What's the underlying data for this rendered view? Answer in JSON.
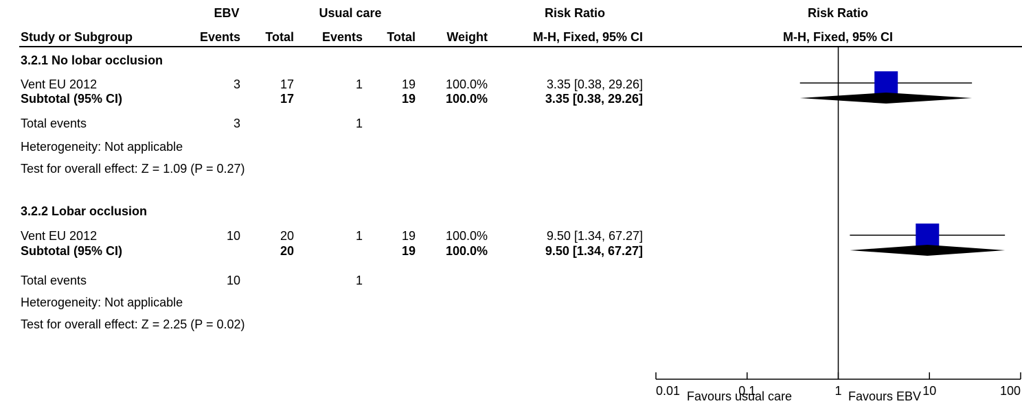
{
  "header": {
    "group1": "EBV",
    "group2": "Usual care",
    "rr_col": "Risk Ratio",
    "rr_plot": "Risk Ratio",
    "col_study": "Study or Subgroup",
    "col_events1": "Events",
    "col_total1": "Total",
    "col_events2": "Events",
    "col_total2": "Total",
    "col_weight": "Weight",
    "col_method": "M-H, Fixed, 95% CI",
    "plot_method": "M-H, Fixed, 95% CI"
  },
  "subgroups": [
    {
      "title": "3.2.1 No lobar occlusion",
      "study": {
        "name": "Vent EU 2012",
        "events1": "3",
        "total1": "17",
        "events2": "1",
        "total2": "19",
        "weight": "100.0%",
        "ci": "3.35 [0.38, 29.26]"
      },
      "subtotal": {
        "label": "Subtotal (95% CI)",
        "total1": "17",
        "total2": "19",
        "weight": "100.0%",
        "ci": "3.35 [0.38, 29.26]"
      },
      "total_events": {
        "label": "Total events",
        "events1": "3",
        "events2": "1"
      },
      "heterogeneity": "Heterogeneity: Not applicable",
      "overall": "Test for overall effect: Z = 1.09 (P = 0.27)"
    },
    {
      "title": "3.2.2 Lobar occlusion",
      "study": {
        "name": "Vent EU 2012",
        "events1": "10",
        "total1": "20",
        "events2": "1",
        "total2": "19",
        "weight": "100.0%",
        "ci": "9.50 [1.34, 67.27]"
      },
      "subtotal": {
        "label": "Subtotal (95% CI)",
        "total1": "20",
        "total2": "19",
        "weight": "100.0%",
        "ci": "9.50 [1.34, 67.27]"
      },
      "total_events": {
        "label": "Total events",
        "events1": "10",
        "events2": "1"
      },
      "heterogeneity": "Heterogeneity: Not applicable",
      "overall": "Test for overall effect: Z = 2.25 (P = 0.02)"
    }
  ],
  "favours_left": "Favours usual care",
  "favours_right": "Favours EBV",
  "colors": {
    "study_square": "#0000c0",
    "diamond": "#000000",
    "line": "#000000"
  },
  "chart_data": {
    "type": "forest",
    "scale": "log",
    "xlim": [
      0.01,
      100
    ],
    "x_ticks": [
      0.01,
      0.1,
      1,
      10,
      100
    ],
    "x_tick_labels": [
      "0.01",
      "0.1",
      "1",
      "10",
      "100"
    ],
    "null_value": 1,
    "rows": [
      {
        "kind": "study",
        "subgroup": "3.2.1 No lobar occlusion",
        "estimate": 3.35,
        "ci_low": 0.38,
        "ci_high": 29.26,
        "weight": 100.0
      },
      {
        "kind": "subtotal",
        "subgroup": "3.2.1 No lobar occlusion",
        "estimate": 3.35,
        "ci_low": 0.38,
        "ci_high": 29.26
      },
      {
        "kind": "study",
        "subgroup": "3.2.2 Lobar occlusion",
        "estimate": 9.5,
        "ci_low": 1.34,
        "ci_high": 67.27,
        "weight": 100.0
      },
      {
        "kind": "subtotal",
        "subgroup": "3.2.2 Lobar occlusion",
        "estimate": 9.5,
        "ci_low": 1.34,
        "ci_high": 67.27
      }
    ]
  }
}
